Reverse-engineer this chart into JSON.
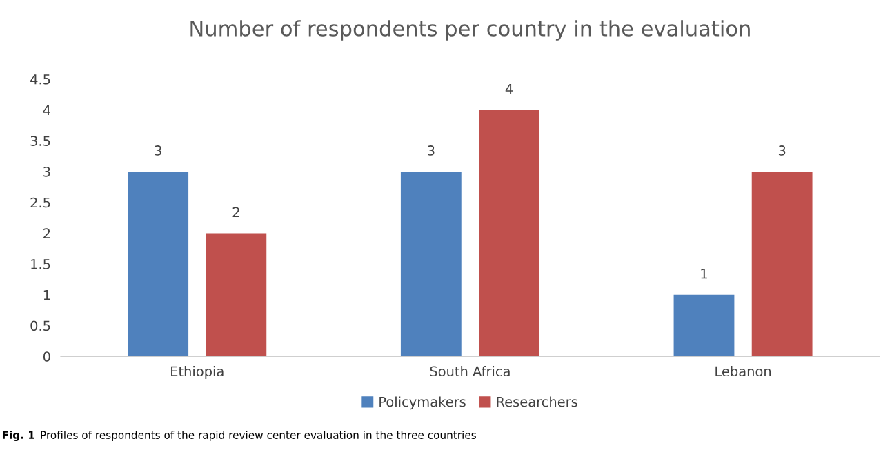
{
  "chart_data": {
    "type": "bar",
    "title": "Number of respondents per country in the evaluation",
    "categories": [
      "Ethiopia",
      "South Africa",
      "Lebanon"
    ],
    "series": [
      {
        "name": "Policymakers",
        "color": "#4f81bd",
        "values": [
          3,
          3,
          1
        ]
      },
      {
        "name": "Researchers",
        "color": "#c0504d",
        "values": [
          2,
          4,
          3
        ]
      }
    ],
    "ylim": [
      0,
      4.5
    ],
    "yticks": [
      0,
      0.5,
      1,
      1.5,
      2,
      2.5,
      3,
      3.5,
      4,
      4.5
    ],
    "data_labels": true,
    "grid": false,
    "legend": "bottom",
    "annotations": [
      "Fig. 1",
      "Profiles of respondents of the rapid review center evaluation in the three countries"
    ]
  }
}
